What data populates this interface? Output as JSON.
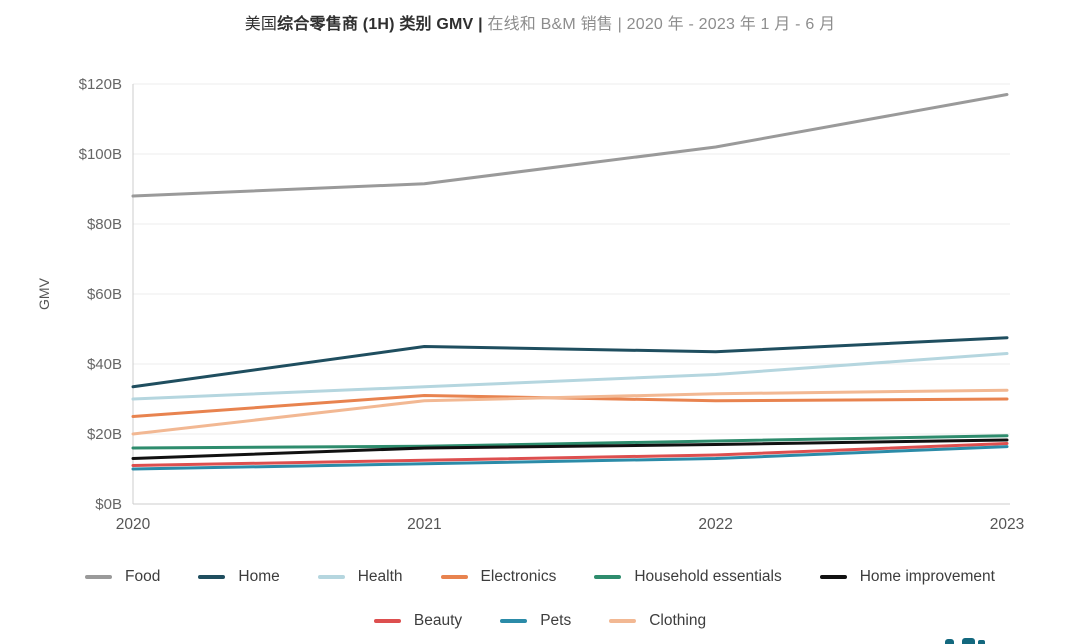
{
  "title": {
    "region": "美国",
    "bold": "综合零售商 (1H) 类别 GMV",
    "pipe": " | ",
    "rest": "在线和 B&M 销售 | 2020 年 - 2023 年 1 月 - 6 月"
  },
  "chart_data": {
    "type": "line",
    "categories": [
      "2020",
      "2021",
      "2022",
      "2023"
    ],
    "xlabel": "",
    "ylabel": "GMV",
    "ylim": [
      0,
      120
    ],
    "ytick_step": 20,
    "ytick_labels": [
      "$0B",
      "$20B",
      "$40B",
      "$60B",
      "$80B",
      "$100B",
      "$120B"
    ],
    "grid": true,
    "legend_position": "bottom",
    "units": "billions USD",
    "series": [
      {
        "name": "Food",
        "color": "#9a9a9a",
        "values": [
          88,
          91.5,
          102,
          117
        ]
      },
      {
        "name": "Home",
        "color": "#1f4e5f",
        "values": [
          33.5,
          45,
          43.5,
          47.5
        ]
      },
      {
        "name": "Health",
        "color": "#b5d6df",
        "values": [
          30,
          33.5,
          37,
          43
        ]
      },
      {
        "name": "Electronics",
        "color": "#e8834f",
        "values": [
          25,
          31,
          29.5,
          30
        ]
      },
      {
        "name": "Household essentials",
        "color": "#2e8c6d",
        "values": [
          16,
          16.5,
          18,
          19.5
        ]
      },
      {
        "name": "Home improvement",
        "color": "#111111",
        "values": [
          13,
          16,
          17,
          18.3
        ]
      },
      {
        "name": "Beauty",
        "color": "#dd4f4f",
        "values": [
          11,
          12.5,
          14,
          17.3
        ]
      },
      {
        "name": "Pets",
        "color": "#2b8ba8",
        "values": [
          10,
          11.5,
          13,
          16.4
        ]
      },
      {
        "name": "Clothing",
        "color": "#f2b893",
        "values": [
          20,
          29.5,
          31.5,
          32.5
        ]
      }
    ],
    "legend_rows": [
      [
        "Food",
        "Home",
        "Health",
        "Electronics",
        "Household essentials",
        "Home improvement"
      ],
      [
        "Beauty",
        "Pets",
        "Clothing"
      ]
    ]
  }
}
